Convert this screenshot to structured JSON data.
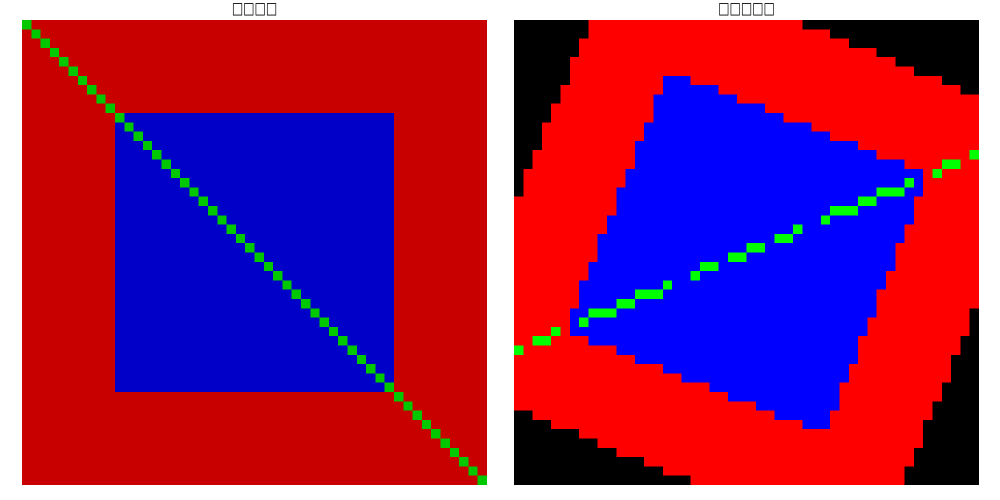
{
  "figure": {
    "left_panel": {
      "title": "□□□□",
      "colors": {
        "background": "#c80000",
        "square": "#0000c8",
        "diagonal": "#00c800"
      }
    },
    "right_panel": {
      "title": "□□□□□",
      "rotation_deg": 68,
      "colors": {
        "outside": "#000000",
        "background": "#ff0000",
        "square": "#0000ff",
        "diagonal": "#00ff00"
      }
    }
  },
  "image": {
    "size": 50,
    "square_from": 10,
    "square_to": 40
  }
}
